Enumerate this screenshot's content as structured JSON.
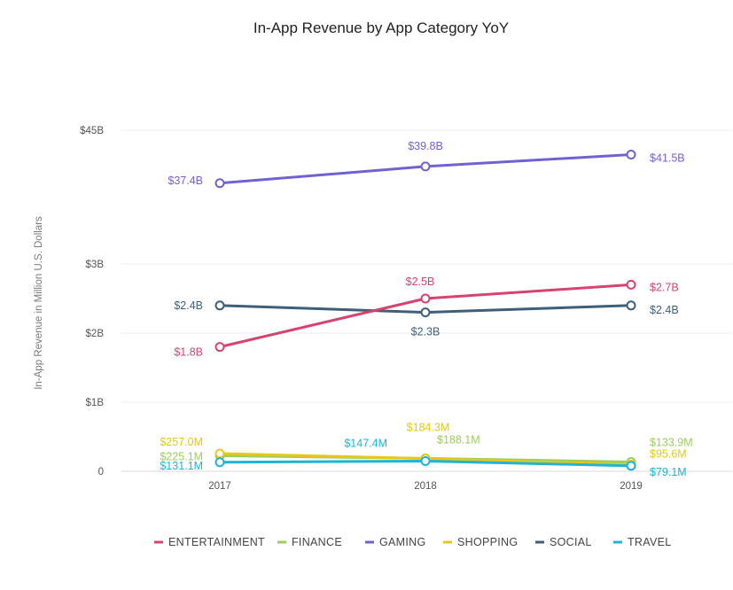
{
  "chart_data": {
    "type": "line",
    "title": "In-App Revenue by App Category YoY",
    "ylabel": "In-App Revenue in Million U.S. Dollars",
    "xlabel": "",
    "categories": [
      "2017",
      "2018",
      "2019"
    ],
    "yticks": [
      "0",
      "$1B",
      "$2B",
      "$3B",
      "$45B"
    ],
    "axis_break": "between $3B and $45B",
    "grid": true,
    "legend_position": "bottom",
    "series": [
      {
        "name": "ENTERTAINMENT",
        "color": "#d6436e",
        "values": [
          1800,
          2500,
          2700
        ],
        "labels": [
          "$1.8B",
          "$2.5B",
          "$2.7B"
        ]
      },
      {
        "name": "FINANCE",
        "color": "#9ccd5d",
        "values": [
          225.1,
          188.1,
          133.9
        ],
        "labels": [
          "$225.1M",
          "$188.1M",
          "$133.9M"
        ]
      },
      {
        "name": "GAMING",
        "color": "#7162d2",
        "values": [
          37400,
          39800,
          41500
        ],
        "labels": [
          "$37.4B",
          "$39.8B",
          "$41.5B"
        ]
      },
      {
        "name": "SHOPPING",
        "color": "#e6c818",
        "values": [
          257.0,
          184.3,
          95.6
        ],
        "labels": [
          "$257.0M",
          "$184.3M",
          "$95.6M"
        ]
      },
      {
        "name": "SOCIAL",
        "color": "#3e5f7a",
        "values": [
          2400,
          2300,
          2400
        ],
        "labels": [
          "$2.4B",
          "$2.3B",
          "$2.4B"
        ]
      },
      {
        "name": "TRAVEL",
        "color": "#20b3d8",
        "values": [
          131.1,
          147.4,
          79.1
        ],
        "labels": [
          "$131.1M",
          "$147.4M",
          "$79.1M"
        ]
      }
    ]
  }
}
